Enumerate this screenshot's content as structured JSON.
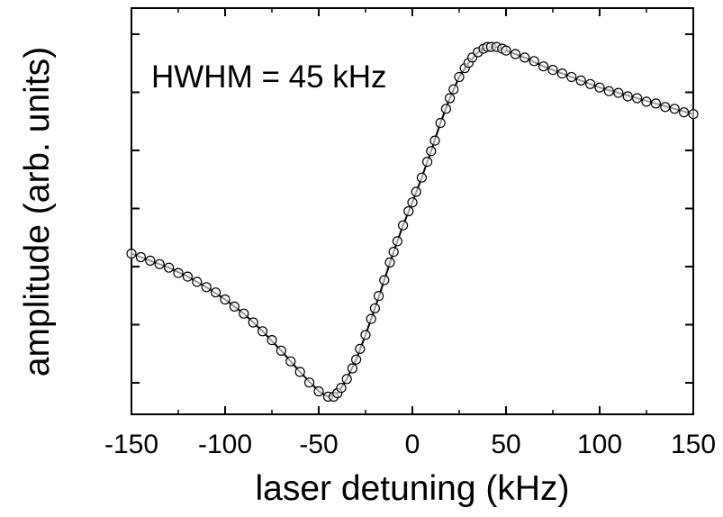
{
  "chart_data": {
    "type": "scatter",
    "title": "",
    "xlabel": "laser detuning (kHz)",
    "ylabel": "amplitude (arb. units)",
    "xlim": [
      -150,
      150
    ],
    "ylim": [
      -1.05,
      1.25
    ],
    "xticks": [
      -150,
      -100,
      -50,
      0,
      50,
      100,
      150
    ],
    "yticks_shown_without_labels": true,
    "grid": false,
    "annotation": "HWHM = 45 kHz",
    "series": [
      {
        "marker": "open-circle",
        "x": [
          -150,
          -145,
          -140,
          -135,
          -130,
          -125,
          -120,
          -115,
          -110,
          -105,
          -100,
          -95,
          -90,
          -85,
          -80,
          -75,
          -70,
          -65,
          -60,
          -55,
          -50,
          -45,
          -42,
          -40,
          -38,
          -35,
          -32,
          -30,
          -28,
          -25,
          -22,
          -20,
          -18,
          -15,
          -12,
          -10,
          -8,
          -5,
          -2,
          0,
          2,
          5,
          8,
          10,
          12,
          15,
          18,
          20,
          22,
          25,
          28,
          30,
          32,
          35,
          38,
          40,
          42,
          45,
          48,
          50,
          55,
          60,
          65,
          70,
          75,
          80,
          85,
          90,
          95,
          100,
          105,
          110,
          115,
          120,
          125,
          130,
          135,
          140,
          145,
          150
        ],
        "y": [
          -0.14,
          -0.16,
          -0.18,
          -0.2,
          -0.22,
          -0.25,
          -0.27,
          -0.3,
          -0.33,
          -0.36,
          -0.4,
          -0.44,
          -0.48,
          -0.53,
          -0.58,
          -0.63,
          -0.69,
          -0.75,
          -0.81,
          -0.87,
          -0.92,
          -0.95,
          -0.95,
          -0.93,
          -0.9,
          -0.85,
          -0.79,
          -0.74,
          -0.68,
          -0.6,
          -0.51,
          -0.45,
          -0.38,
          -0.29,
          -0.19,
          -0.13,
          -0.07,
          0.02,
          0.1,
          0.15,
          0.21,
          0.29,
          0.38,
          0.44,
          0.5,
          0.6,
          0.68,
          0.74,
          0.79,
          0.86,
          0.91,
          0.94,
          0.97,
          1.0,
          1.02,
          1.03,
          1.03,
          1.03,
          1.02,
          1.01,
          0.99,
          0.97,
          0.95,
          0.92,
          0.9,
          0.88,
          0.86,
          0.84,
          0.82,
          0.8,
          0.78,
          0.77,
          0.75,
          0.74,
          0.72,
          0.71,
          0.69,
          0.68,
          0.66,
          0.65
        ]
      },
      {
        "marker": "line",
        "x": [
          -150,
          -140,
          -130,
          -120,
          -110,
          -100,
          -90,
          -80,
          -70,
          -60,
          -50,
          -45,
          -40,
          -35,
          -30,
          -25,
          -20,
          -15,
          -10,
          -5,
          0,
          5,
          10,
          15,
          20,
          25,
          30,
          35,
          40,
          45,
          50,
          60,
          70,
          80,
          90,
          100,
          110,
          120,
          130,
          140,
          150
        ],
        "y": [
          -0.14,
          -0.18,
          -0.22,
          -0.27,
          -0.33,
          -0.4,
          -0.48,
          -0.58,
          -0.69,
          -0.81,
          -0.92,
          -0.95,
          -0.93,
          -0.85,
          -0.74,
          -0.6,
          -0.45,
          -0.29,
          -0.13,
          0.02,
          0.15,
          0.29,
          0.44,
          0.6,
          0.74,
          0.86,
          0.94,
          1.0,
          1.03,
          1.03,
          1.01,
          0.97,
          0.92,
          0.88,
          0.84,
          0.8,
          0.77,
          0.74,
          0.71,
          0.68,
          0.65
        ]
      }
    ]
  }
}
